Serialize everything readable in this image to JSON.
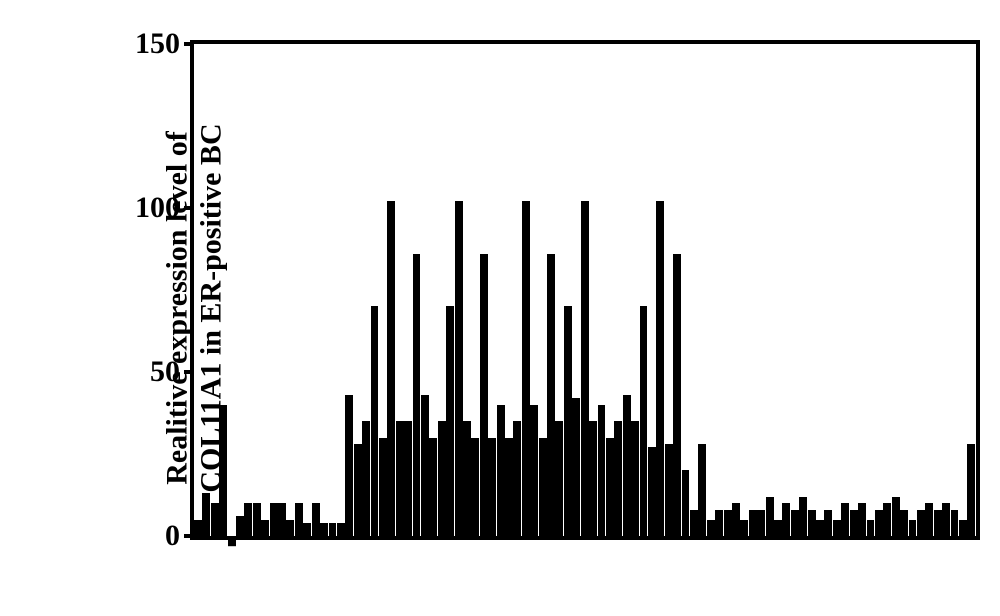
{
  "chart": {
    "type": "bar",
    "ylabel_line1": "Realitive expression level of",
    "ylabel_line2": "COL11A1 in ER-positive BC",
    "ylim": [
      0,
      150
    ],
    "yticks": [
      0,
      50,
      100,
      150
    ],
    "ytick_labels": [
      "0",
      "50",
      "100",
      "150"
    ],
    "bar_color": "#000000",
    "border_color": "#000000",
    "background_color": "#ffffff",
    "label_fontsize": 30,
    "tick_fontsize": 30,
    "font_weight": "bold",
    "values": [
      5,
      13,
      10,
      40,
      -3,
      6,
      10,
      10,
      5,
      10,
      10,
      5,
      10,
      4,
      10,
      4,
      4,
      4,
      43,
      28,
      35,
      70,
      30,
      102,
      35,
      35,
      86,
      43,
      30,
      35,
      70,
      102,
      35,
      30,
      86,
      30,
      40,
      30,
      35,
      102,
      40,
      30,
      86,
      35,
      70,
      42,
      102,
      35,
      40,
      30,
      35,
      43,
      35,
      70,
      27,
      102,
      28,
      86,
      20,
      8,
      28,
      5,
      8,
      8,
      10,
      5,
      8,
      8,
      12,
      5,
      10,
      8,
      12,
      8,
      5,
      8,
      5,
      10,
      8,
      10,
      5,
      8,
      10,
      12,
      8,
      5,
      8,
      10,
      8,
      10,
      8,
      5,
      28
    ]
  }
}
